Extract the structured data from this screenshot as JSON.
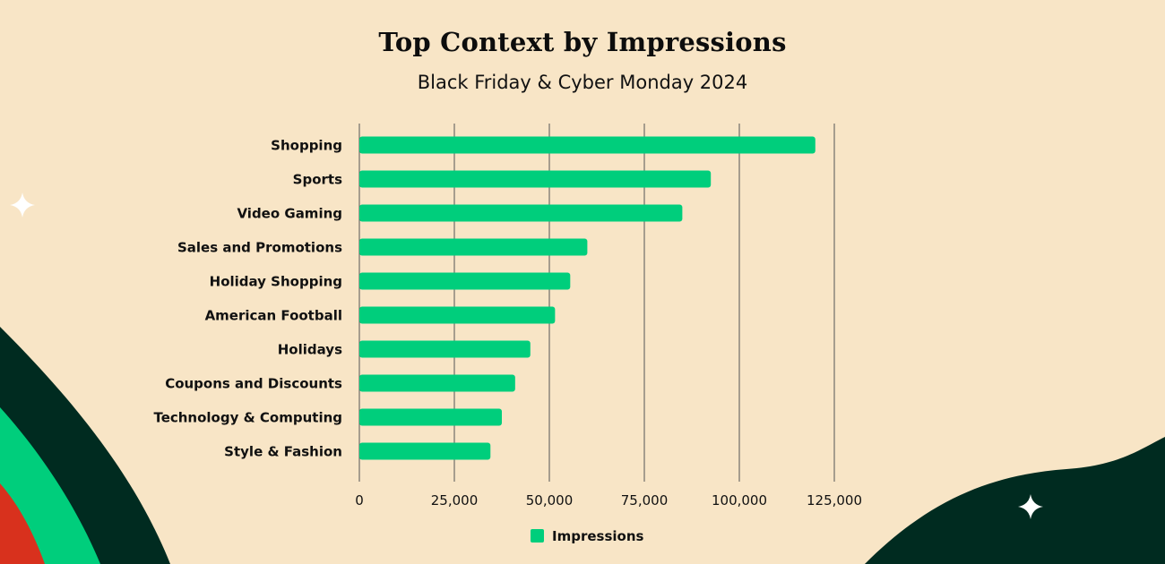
{
  "colors": {
    "background": "#f8e5c6",
    "bar": "#00ce7c",
    "dark_green": "#002b20",
    "bright_green": "#00ce7c",
    "red": "#d8311d",
    "sparkle": "#ffffff",
    "text": "#111111",
    "gridline": "#555555"
  },
  "decorations": [
    "sparkle-icon",
    "sparkle-icon"
  ],
  "chart_data": {
    "type": "bar",
    "orientation": "horizontal",
    "title": "Top Context by Impressions",
    "subtitle": "Black Friday & Cyber Monday 2024",
    "categories": [
      "Shopping",
      "Sports",
      "Video Gaming",
      "Sales and Promotions",
      "Holiday Shopping",
      "American Football",
      "Holidays",
      "Coupons and Discounts",
      "Technology & Computing",
      "Style & Fashion"
    ],
    "series": [
      {
        "name": "Impressions",
        "values": [
          120000,
          92500,
          85000,
          60000,
          55500,
          51500,
          45000,
          41000,
          37500,
          34500
        ]
      }
    ],
    "xlim": [
      0,
      125000
    ],
    "x_ticks": [
      0,
      25000,
      50000,
      75000,
      100000,
      125000
    ],
    "x_tick_labels": [
      "0",
      "25,000",
      "50,000",
      "75,000",
      "100,000",
      "125,000"
    ],
    "grid": true,
    "legend": "bottom-center"
  }
}
